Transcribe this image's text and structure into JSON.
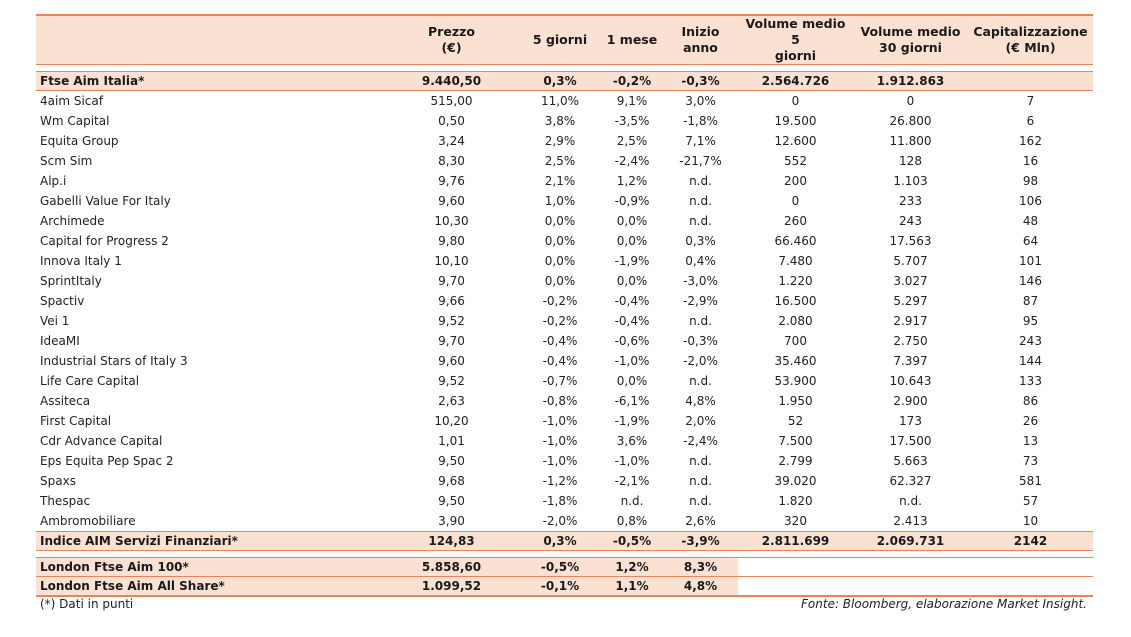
{
  "headers": [
    "",
    "Prezzo\n(€)",
    "5 giorni",
    "1 mese",
    "Inizio anno",
    "Volume medio 5\ngiorni",
    "Volume medio\n30 giorni",
    "Capitalizzazione\n(€ Mln)"
  ],
  "ftse_row": [
    "Ftse Aim Italia*",
    "9.440,50",
    "0,3%",
    "-0,2%",
    "-0,3%",
    "2.564.726",
    "1.912.863",
    ""
  ],
  "rows": [
    [
      "4aim Sicaf",
      "515,00",
      "11,0%",
      "9,1%",
      "3,0%",
      "0",
      "0",
      "7"
    ],
    [
      "Wm Capital",
      "0,50",
      "3,8%",
      "-3,5%",
      "-1,8%",
      "19.500",
      "26.800",
      "6"
    ],
    [
      "Equita Group",
      "3,24",
      "2,9%",
      "2,5%",
      "7,1%",
      "12.600",
      "11.800",
      "162"
    ],
    [
      "Scm Sim",
      "8,30",
      "2,5%",
      "-2,4%",
      "-21,7%",
      "552",
      "128",
      "16"
    ],
    [
      "Alp.i",
      "9,76",
      "2,1%",
      "1,2%",
      "n.d.",
      "200",
      "1.103",
      "98"
    ],
    [
      "Gabelli Value For Italy",
      "9,60",
      "1,0%",
      "-0,9%",
      "n.d.",
      "0",
      "233",
      "106"
    ],
    [
      "Archimede",
      "10,30",
      "0,0%",
      "0,0%",
      "n.d.",
      "260",
      "243",
      "48"
    ],
    [
      "Capital for Progress 2",
      "9,80",
      "0,0%",
      "0,0%",
      "0,3%",
      "66.460",
      "17.563",
      "64"
    ],
    [
      "Innova Italy 1",
      "10,10",
      "0,0%",
      "-1,9%",
      "0,4%",
      "7.480",
      "5.707",
      "101"
    ],
    [
      "SprintItaly",
      "9,70",
      "0,0%",
      "0,0%",
      "-3,0%",
      "1.220",
      "3.027",
      "146"
    ],
    [
      "Spactiv",
      "9,66",
      "-0,2%",
      "-0,4%",
      "-2,9%",
      "16.500",
      "5.297",
      "87"
    ],
    [
      "Vei 1",
      "9,52",
      "-0,2%",
      "-0,4%",
      "n.d.",
      "2.080",
      "2.917",
      "95"
    ],
    [
      "IdeaMI",
      "9,70",
      "-0,4%",
      "-0,6%",
      "-0,3%",
      "700",
      "2.750",
      "243"
    ],
    [
      "Industrial Stars of Italy 3",
      "9,60",
      "-0,4%",
      "-1,0%",
      "-2,0%",
      "35.460",
      "7.397",
      "144"
    ],
    [
      "Life Care Capital",
      "9,52",
      "-0,7%",
      "0,0%",
      "n.d.",
      "53.900",
      "10.643",
      "133"
    ],
    [
      "Assiteca",
      "2,63",
      "-0,8%",
      "-6,1%",
      "4,8%",
      "1.950",
      "2.900",
      "86"
    ],
    [
      "First Capital",
      "10,20",
      "-1,0%",
      "-1,9%",
      "2,0%",
      "52",
      "173",
      "26"
    ],
    [
      "Cdr Advance Capital",
      "1,01",
      "-1,0%",
      "3,6%",
      "-2,4%",
      "7.500",
      "17.500",
      "13"
    ],
    [
      "Eps Equita Pep Spac 2",
      "9,50",
      "-1,0%",
      "-1,0%",
      "n.d.",
      "2.799",
      "5.663",
      "73"
    ],
    [
      "Spaxs",
      "9,68",
      "-1,2%",
      "-2,1%",
      "n.d.",
      "39.020",
      "62.327",
      "581"
    ],
    [
      "Thespac",
      "9,50",
      "-1,8%",
      "n.d.",
      "n.d.",
      "1.820",
      "n.d.",
      "57"
    ],
    [
      "Ambromobiliare",
      "3,90",
      "-2,0%",
      "0,8%",
      "2,6%",
      "320",
      "2.413",
      "10"
    ]
  ],
  "indice_row": [
    "Indice AIM Servizi Finanziari*",
    "124,83",
    "0,3%",
    "-0,5%",
    "-3,9%",
    "2.811.699",
    "2.069.731",
    "2142"
  ],
  "london_rows": [
    [
      "London Ftse Aim 100*",
      "5.858,60",
      "-0,5%",
      "1,2%",
      "8,3%"
    ],
    [
      "London Ftse Aim All Share*",
      "1.099,52",
      "-0,1%",
      "1,1%",
      "4,8%"
    ]
  ],
  "footer": {
    "note": "(*) Dati in punti",
    "source": "Fonte: Bloomberg, elaborazione Market Insight."
  }
}
